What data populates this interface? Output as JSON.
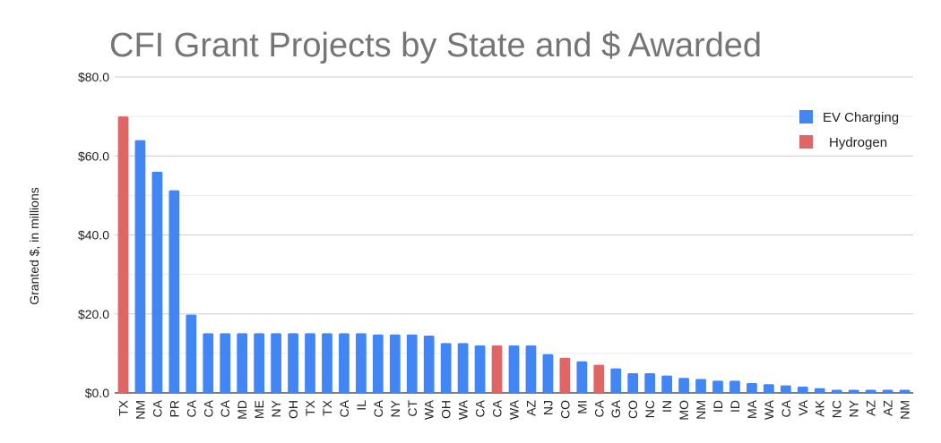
{
  "chart_data": {
    "type": "bar",
    "title": "CFI Grant Projects by State and $ Awarded",
    "ylabel": "Granted $, in millions",
    "xlabel": "",
    "ylim": [
      0,
      80
    ],
    "yticks": [
      0,
      20,
      40,
      60,
      80
    ],
    "ytick_labels": [
      "$0.0",
      "$20.0",
      "$40.0",
      "$60.0",
      "$80.0"
    ],
    "grid": true,
    "legend_position": "top-right",
    "series": [
      {
        "name": "EV Charging",
        "color": "#4285f4"
      },
      {
        "name": "Hydrogen",
        "color": "#e06666"
      }
    ],
    "categories": [
      "TX",
      "NM",
      "CA",
      "PR",
      "CA",
      "CA",
      "CA",
      "MD",
      "ME",
      "NY",
      "OH",
      "TX",
      "TX",
      "CA",
      "IL",
      "CA",
      "NY",
      "CT",
      "WA",
      "OH",
      "WA",
      "CA",
      "CA",
      "WA",
      "AZ",
      "NJ",
      "CO",
      "MI",
      "CA",
      "GA",
      "CO",
      "NC",
      "IN",
      "MO",
      "NM",
      "ID",
      "ID",
      "MA",
      "WA",
      "CA",
      "VA",
      "AK",
      "NC",
      "NY",
      "AZ",
      "AZ",
      "NM"
    ],
    "values": [
      70,
      64,
      56,
      51.3,
      19.8,
      15.1,
      15.1,
      15.1,
      15.1,
      15.1,
      15.1,
      15.1,
      15.1,
      15.1,
      15.1,
      14.8,
      14.8,
      14.8,
      14.5,
      12.6,
      12.6,
      12.0,
      12.0,
      12.0,
      12.0,
      9.8,
      8.9,
      8.0,
      7.1,
      6.2,
      5.0,
      5.0,
      4.4,
      3.8,
      3.5,
      3.1,
      3.1,
      2.5,
      2.2,
      1.9,
      1.6,
      1.2,
      0.8,
      0.8,
      0.8,
      0.8,
      0.8
    ],
    "bar_series": [
      "Hydrogen",
      "EV Charging",
      "EV Charging",
      "EV Charging",
      "EV Charging",
      "EV Charging",
      "EV Charging",
      "EV Charging",
      "EV Charging",
      "EV Charging",
      "EV Charging",
      "EV Charging",
      "EV Charging",
      "EV Charging",
      "EV Charging",
      "EV Charging",
      "EV Charging",
      "EV Charging",
      "EV Charging",
      "EV Charging",
      "EV Charging",
      "EV Charging",
      "Hydrogen",
      "EV Charging",
      "EV Charging",
      "EV Charging",
      "Hydrogen",
      "EV Charging",
      "Hydrogen",
      "EV Charging",
      "EV Charging",
      "EV Charging",
      "EV Charging",
      "EV Charging",
      "EV Charging",
      "EV Charging",
      "EV Charging",
      "EV Charging",
      "EV Charging",
      "EV Charging",
      "EV Charging",
      "EV Charging",
      "EV Charging",
      "EV Charging",
      "EV Charging",
      "EV Charging",
      "EV Charging"
    ]
  }
}
